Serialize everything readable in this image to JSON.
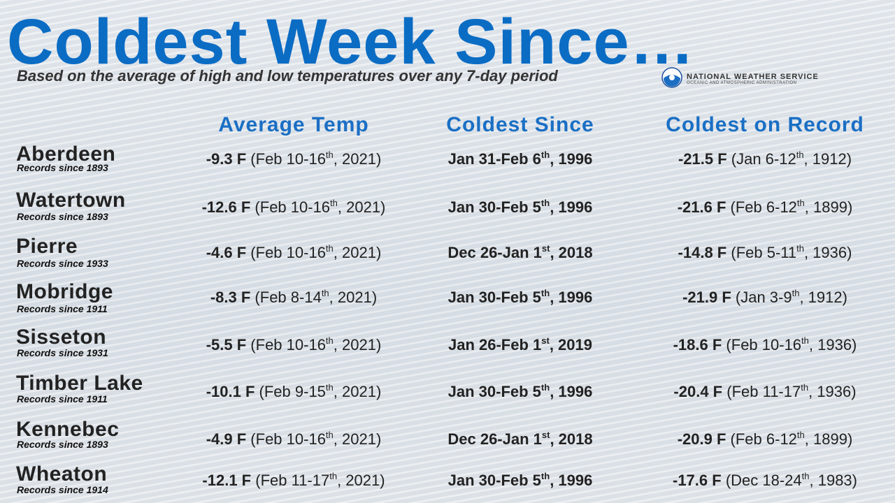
{
  "header": {
    "title": "Coldest Week Since…",
    "subtitle": "Based on the average of high and low temperatures over any 7-day period",
    "logo_line1": "NATIONAL WEATHER SERVICE",
    "logo_line2": "OCEANIC AND ATMOSPHERIC ADMINISTRATION"
  },
  "table": {
    "columns": [
      "Average Temp",
      "Coldest Since",
      "Coldest on Record"
    ],
    "rows": [
      {
        "city": "Aberdeen",
        "records": "Records since 1893",
        "avg": {
          "bold": "-9.3 F",
          "pre": " (Feb 10-16",
          "sup": "th",
          "post": ", 2021)"
        },
        "since": {
          "pre": "Jan 31-Feb 6",
          "sup": "th",
          "post": ", 1996"
        },
        "record": {
          "bold": "-21.5 F",
          "pre": " (Jan 6-12",
          "sup": "th",
          "post": ", 1912)"
        }
      },
      {
        "city": "Watertown",
        "records": "Records since 1893",
        "avg": {
          "bold": "-12.6 F",
          "pre": " (Feb 10-16",
          "sup": "th",
          "post": ", 2021)"
        },
        "since": {
          "pre": "Jan 30-Feb 5",
          "sup": "th",
          "post": ", 1996"
        },
        "record": {
          "bold": "-21.6 F",
          "pre": " (Feb 6-12",
          "sup": "th",
          "post": ", 1899)"
        }
      },
      {
        "city": "Pierre",
        "records": "Records since 1933",
        "avg": {
          "bold": "-4.6 F",
          "pre": " (Feb 10-16",
          "sup": "th",
          "post": ", 2021)"
        },
        "since": {
          "pre": "Dec 26-Jan 1",
          "sup": "st",
          "post": ", 2018"
        },
        "record": {
          "bold": "-14.8 F",
          "pre": " (Feb 5-11",
          "sup": "th",
          "post": ", 1936)"
        }
      },
      {
        "city": "Mobridge",
        "records": "Records since 1911",
        "avg": {
          "bold": "-8.3 F",
          "pre": " (Feb 8-14",
          "sup": "th",
          "post": ", 2021)"
        },
        "since": {
          "pre": "Jan 30-Feb 5",
          "sup": "th",
          "post": ", 1996"
        },
        "record": {
          "bold": "-21.9 F",
          "pre": " (Jan 3-9",
          "sup": "th",
          "post": ", 1912)"
        }
      },
      {
        "city": "Sisseton",
        "records": "Records since 1931",
        "avg": {
          "bold": "-5.5 F",
          "pre": " (Feb 10-16",
          "sup": "th",
          "post": ", 2021)"
        },
        "since": {
          "pre": "Jan 26-Feb 1",
          "sup": "st",
          "post": ", 2019"
        },
        "record": {
          "bold": "-18.6 F",
          "pre": " (Feb 10-16",
          "sup": "th",
          "post": ", 1936)"
        }
      },
      {
        "city": "Timber Lake",
        "records": "Records since 1911",
        "avg": {
          "bold": "-10.1 F",
          "pre": " (Feb 9-15",
          "sup": "th",
          "post": ", 2021)"
        },
        "since": {
          "pre": "Jan 30-Feb 5",
          "sup": "th",
          "post": ", 1996"
        },
        "record": {
          "bold": "-20.4 F",
          "pre": " (Feb 11-17",
          "sup": "th",
          "post": ", 1936)"
        }
      },
      {
        "city": "Kennebec",
        "records": "Records since 1893",
        "avg": {
          "bold": "-4.9 F",
          "pre": " (Feb 10-16",
          "sup": "th",
          "post": ", 2021)"
        },
        "since": {
          "pre": "Dec 26-Jan 1",
          "sup": "st",
          "post": ", 2018"
        },
        "record": {
          "bold": "-20.9 F",
          "pre": " (Feb 6-12",
          "sup": "th",
          "post": ", 1899)"
        }
      },
      {
        "city": "Wheaton",
        "records": "Records since 1914",
        "avg": {
          "bold": "-12.1 F",
          "pre": " (Feb 11-17",
          "sup": "th",
          "post": ", 2021)"
        },
        "since": {
          "pre": "Jan 30-Feb 5",
          "sup": "th",
          "post": ", 1996"
        },
        "record": {
          "bold": "-17.6 F",
          "pre": " (Dec 18-24",
          "sup": "th",
          "post": ", 1983)"
        }
      }
    ]
  }
}
